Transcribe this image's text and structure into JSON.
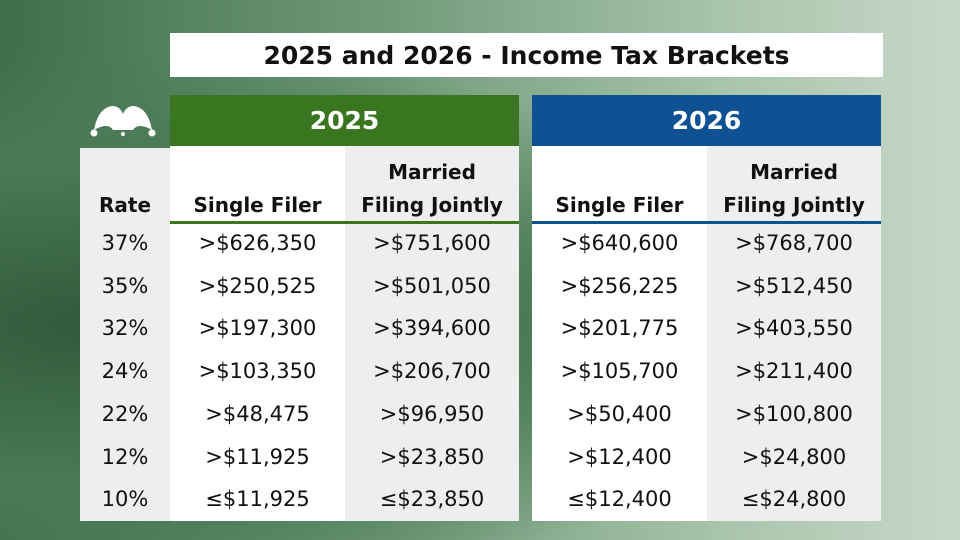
{
  "title": "2025 and 2026 - Income Tax Brackets",
  "logo": "jester-hat-logo",
  "colors": {
    "y2025": "#3a7520",
    "y2026": "#0f5294"
  },
  "rate_header": "Rate",
  "years": [
    {
      "label": "2025",
      "single_header": "Single Filer",
      "married_header_1": "Married",
      "married_header_2": "Filing Jointly",
      "single": [
        ">$626,350",
        ">$250,525",
        ">$197,300",
        ">$103,350",
        ">$48,475",
        ">$11,925",
        "≤$11,925"
      ],
      "married": [
        ">$751,600",
        ">$501,050",
        ">$394,600",
        ">$206,700",
        ">$96,950",
        ">$23,850",
        "≤$23,850"
      ]
    },
    {
      "label": "2026",
      "single_header": "Single Filer",
      "married_header_1": "Married",
      "married_header_2": "Filing Jointly",
      "single": [
        ">$640,600",
        ">$256,225",
        ">$201,775",
        ">$105,700",
        ">$50,400",
        ">$12,400",
        "≤$12,400"
      ],
      "married": [
        ">$768,700",
        ">$512,450",
        ">$403,550",
        ">$211,400",
        ">$100,800",
        ">$24,800",
        "≤$24,800"
      ]
    }
  ],
  "rates": [
    "37%",
    "35%",
    "32%",
    "24%",
    "22%",
    "12%",
    "10%"
  ]
}
